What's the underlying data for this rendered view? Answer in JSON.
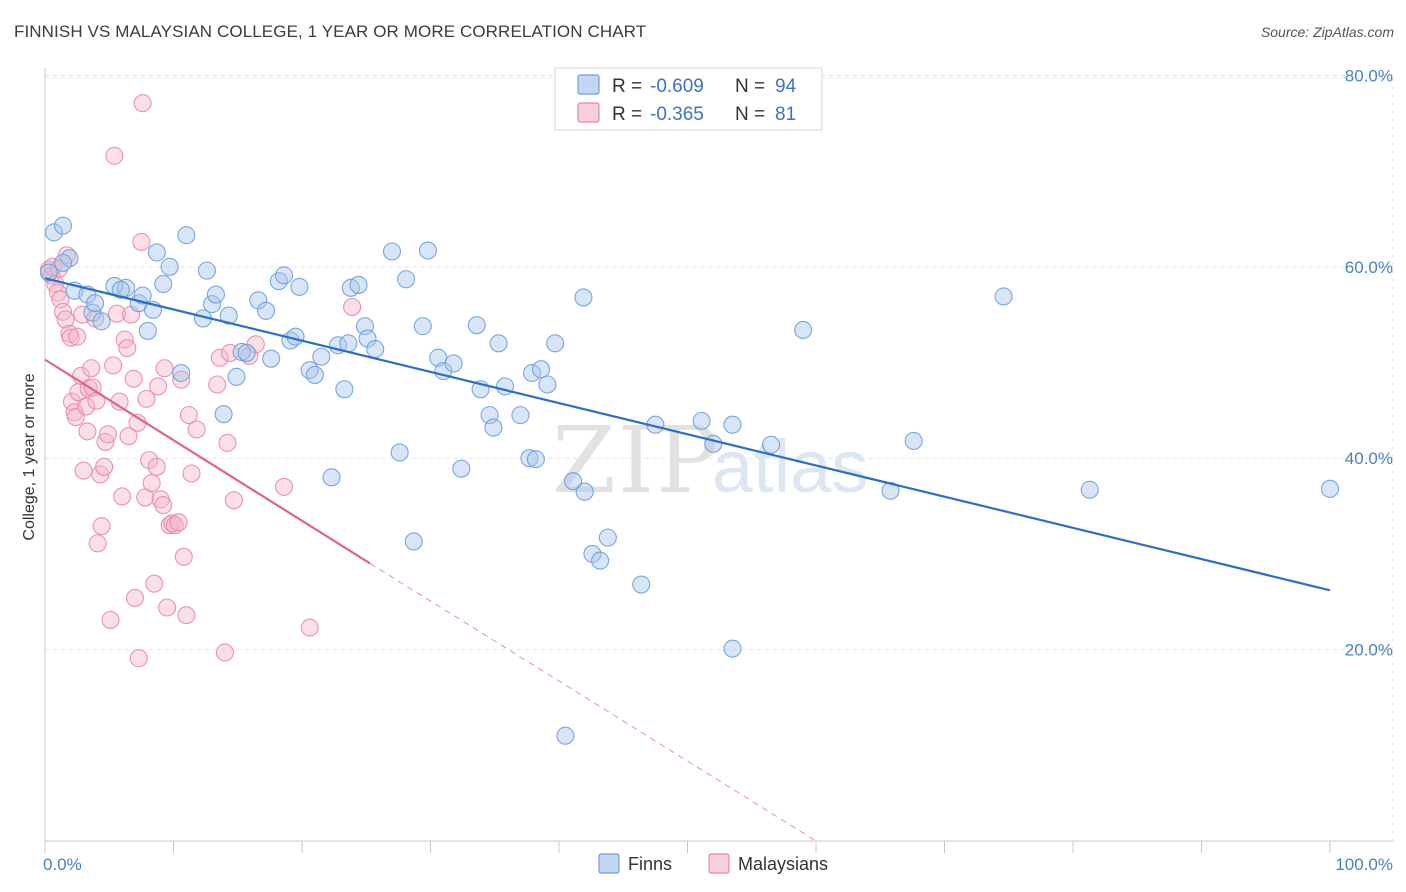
{
  "title": "FINNISH VS MALAYSIAN COLLEGE, 1 YEAR OR MORE CORRELATION CHART",
  "source": "Source: ZipAtlas.com",
  "watermark": {
    "zip": "ZIP",
    "atlas": "atlas"
  },
  "colors": {
    "finns": "#6c9fdc",
    "finns_fill": "#a9c6ec",
    "finns_line": "#2e6ecb",
    "malaysians": "#e888a8",
    "malaysians_fill": "#f4b9cc",
    "malaysians_line": "#e0638f",
    "grid": "#e4e4e4",
    "tick_text": "#4a80c8"
  },
  "legend": {
    "rows": [
      {
        "r_label": "R =",
        "r_value": "-0.609",
        "n_label": "N =",
        "n_value": "94"
      },
      {
        "r_label": "R =",
        "r_value": "-0.365",
        "n_label": "N =",
        "n_value": "81"
      }
    ]
  },
  "bottom_legend": [
    "Finns",
    "Malaysians"
  ],
  "chart_data": {
    "type": "scatter",
    "title": "FINNISH VS MALAYSIAN COLLEGE, 1 YEAR OR MORE CORRELATION CHART",
    "xlabel": "",
    "ylabel": "College, 1 year or more",
    "xlim": [
      0,
      100
    ],
    "ylim": [
      0,
      82
    ],
    "x_tick_labels": [
      "0.0%",
      "100.0%"
    ],
    "y_ticks": [
      20,
      40,
      60,
      80
    ],
    "y_tick_labels": [
      "20.0%",
      "40.0%",
      "60.0%",
      "80.0%"
    ],
    "grid": true,
    "legend_position": "top-center",
    "series": [
      {
        "name": "Finns",
        "r": -0.609,
        "n": 94,
        "trend": {
          "x": [
            0,
            100
          ],
          "y": [
            58.8,
            26.2
          ]
        },
        "points": [
          [
            0.3,
            59.4
          ],
          [
            0.7,
            63.6
          ],
          [
            1.4,
            64.3
          ],
          [
            1.9,
            60.9
          ],
          [
            2.3,
            57.5
          ],
          [
            3.3,
            57.1
          ],
          [
            3.7,
            55.2
          ],
          [
            4.4,
            54.3
          ],
          [
            3.9,
            56.2
          ],
          [
            5.4,
            58.0
          ],
          [
            6.3,
            57.8
          ],
          [
            5.9,
            57.6
          ],
          [
            7.3,
            56.2
          ],
          [
            7.6,
            57.0
          ],
          [
            8.0,
            53.3
          ],
          [
            8.4,
            55.5
          ],
          [
            8.7,
            61.5
          ],
          [
            9.2,
            58.2
          ],
          [
            9.7,
            60.0
          ],
          [
            10.6,
            48.9
          ],
          [
            11.0,
            63.3
          ],
          [
            12.3,
            54.6
          ],
          [
            12.6,
            59.6
          ],
          [
            13.0,
            56.1
          ],
          [
            13.3,
            57.1
          ],
          [
            13.9,
            44.6
          ],
          [
            14.3,
            54.9
          ],
          [
            14.9,
            48.5
          ],
          [
            15.3,
            51.1
          ],
          [
            15.7,
            51.0
          ],
          [
            16.6,
            56.5
          ],
          [
            17.2,
            55.4
          ],
          [
            17.6,
            50.4
          ],
          [
            18.2,
            58.5
          ],
          [
            18.6,
            59.1
          ],
          [
            19.1,
            52.3
          ],
          [
            19.5,
            52.7
          ],
          [
            19.8,
            57.9
          ],
          [
            20.6,
            49.2
          ],
          [
            21.0,
            48.7
          ],
          [
            21.5,
            50.6
          ],
          [
            22.3,
            38.0
          ],
          [
            22.8,
            51.8
          ],
          [
            23.3,
            47.2
          ],
          [
            23.6,
            52.0
          ],
          [
            23.8,
            57.8
          ],
          [
            24.4,
            58.1
          ],
          [
            24.9,
            53.8
          ],
          [
            25.1,
            52.5
          ],
          [
            25.7,
            51.4
          ],
          [
            27.0,
            61.6
          ],
          [
            27.6,
            40.6
          ],
          [
            28.1,
            58.7
          ],
          [
            28.7,
            31.3
          ],
          [
            29.4,
            53.8
          ],
          [
            29.8,
            61.7
          ],
          [
            30.6,
            50.5
          ],
          [
            31.0,
            49.1
          ],
          [
            31.8,
            49.9
          ],
          [
            32.4,
            38.9
          ],
          [
            33.6,
            53.9
          ],
          [
            33.9,
            47.2
          ],
          [
            34.6,
            44.5
          ],
          [
            34.9,
            43.2
          ],
          [
            35.3,
            52.0
          ],
          [
            35.8,
            47.5
          ],
          [
            37.0,
            44.5
          ],
          [
            37.7,
            40.0
          ],
          [
            37.9,
            48.9
          ],
          [
            38.2,
            39.9
          ],
          [
            38.6,
            49.3
          ],
          [
            39.1,
            47.7
          ],
          [
            39.7,
            52.0
          ],
          [
            40.5,
            11.0
          ],
          [
            41.1,
            37.6
          ],
          [
            41.9,
            56.8
          ],
          [
            42.0,
            36.5
          ],
          [
            42.6,
            30.0
          ],
          [
            43.2,
            29.3
          ],
          [
            43.8,
            31.7
          ],
          [
            46.4,
            26.8
          ],
          [
            47.5,
            43.5
          ],
          [
            51.1,
            43.9
          ],
          [
            52.0,
            41.5
          ],
          [
            53.5,
            20.1
          ],
          [
            53.5,
            43.5
          ],
          [
            56.5,
            41.4
          ],
          [
            59.0,
            53.4
          ],
          [
            65.8,
            36.6
          ],
          [
            67.6,
            41.8
          ],
          [
            74.6,
            56.9
          ],
          [
            81.3,
            36.7
          ],
          [
            100.0,
            36.8
          ],
          [
            1.4,
            60.4
          ]
        ]
      },
      {
        "name": "Malaysians",
        "r": -0.365,
        "n": 81,
        "trend": {
          "x": [
            0,
            25.3
          ],
          "y": [
            50.3,
            29.0
          ]
        },
        "trend_dashed": {
          "x": [
            25.3,
            60
          ],
          "y": [
            29.0,
            0
          ]
        },
        "points": [
          [
            0.3,
            59.7
          ],
          [
            0.5,
            59.1
          ],
          [
            0.8,
            58.2
          ],
          [
            1.0,
            57.3
          ],
          [
            1.2,
            56.6
          ],
          [
            1.4,
            55.3
          ],
          [
            1.6,
            54.5
          ],
          [
            1.7,
            61.2
          ],
          [
            1.9,
            53.0
          ],
          [
            2.0,
            52.6
          ],
          [
            2.1,
            45.9
          ],
          [
            2.3,
            44.8
          ],
          [
            2.4,
            44.3
          ],
          [
            2.6,
            46.9
          ],
          [
            2.8,
            48.6
          ],
          [
            2.9,
            55.0
          ],
          [
            3.0,
            38.7
          ],
          [
            3.2,
            45.4
          ],
          [
            3.4,
            47.3
          ],
          [
            3.6,
            49.4
          ],
          [
            3.7,
            47.4
          ],
          [
            3.9,
            54.6
          ],
          [
            4.0,
            46.0
          ],
          [
            4.1,
            31.1
          ],
          [
            4.3,
            38.3
          ],
          [
            4.4,
            32.9
          ],
          [
            4.6,
            39.1
          ],
          [
            4.7,
            41.7
          ],
          [
            4.9,
            42.5
          ],
          [
            5.1,
            23.1
          ],
          [
            5.3,
            49.7
          ],
          [
            5.4,
            71.6
          ],
          [
            5.6,
            55.1
          ],
          [
            5.8,
            45.9
          ],
          [
            6.0,
            36.0
          ],
          [
            6.2,
            52.4
          ],
          [
            6.4,
            51.5
          ],
          [
            6.5,
            42.3
          ],
          [
            6.7,
            55.0
          ],
          [
            6.9,
            48.3
          ],
          [
            7.0,
            25.4
          ],
          [
            7.2,
            43.7
          ],
          [
            7.3,
            19.1
          ],
          [
            7.5,
            62.6
          ],
          [
            7.6,
            77.1
          ],
          [
            7.8,
            35.9
          ],
          [
            7.9,
            46.2
          ],
          [
            8.1,
            39.8
          ],
          [
            8.3,
            37.4
          ],
          [
            8.5,
            26.9
          ],
          [
            8.7,
            39.1
          ],
          [
            8.8,
            47.5
          ],
          [
            9.0,
            35.7
          ],
          [
            9.2,
            35.1
          ],
          [
            9.3,
            49.4
          ],
          [
            9.5,
            24.4
          ],
          [
            9.7,
            33.0
          ],
          [
            9.9,
            33.2
          ],
          [
            10.1,
            33.0
          ],
          [
            10.4,
            33.3
          ],
          [
            10.6,
            48.2
          ],
          [
            10.8,
            29.7
          ],
          [
            11.0,
            23.6
          ],
          [
            11.2,
            44.5
          ],
          [
            11.4,
            38.4
          ],
          [
            11.8,
            43.0
          ],
          [
            13.4,
            47.7
          ],
          [
            13.6,
            50.5
          ],
          [
            14.0,
            19.7
          ],
          [
            14.2,
            41.6
          ],
          [
            14.4,
            51.0
          ],
          [
            14.7,
            35.6
          ],
          [
            15.9,
            50.7
          ],
          [
            16.4,
            51.9
          ],
          [
            18.6,
            37.0
          ],
          [
            20.6,
            22.3
          ],
          [
            23.9,
            55.8
          ],
          [
            0.6,
            60.0
          ],
          [
            1.1,
            59.8
          ],
          [
            2.5,
            52.7
          ],
          [
            3.3,
            42.8
          ]
        ]
      }
    ]
  }
}
